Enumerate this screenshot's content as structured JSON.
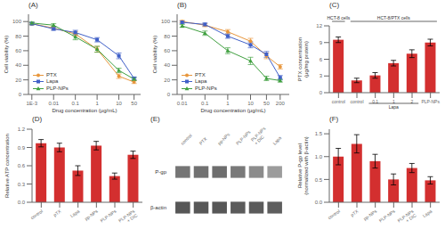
{
  "chart_data": [
    {
      "type": "line",
      "title": "(A)",
      "x_label": "Drug concentration (μg/mL)",
      "y_label": "Cell viability (%)",
      "log": "x",
      "x": [
        0.001,
        0.01,
        0.1,
        1,
        10,
        50
      ],
      "xlim": [
        0.0007,
        100
      ],
      "xticks": [
        {
          "value": 0.001,
          "label": "1E-3"
        },
        0.01,
        0.1,
        1,
        10,
        50
      ],
      "ylim": [
        0,
        110
      ],
      "yticks": [
        0,
        20,
        40,
        60,
        80,
        100
      ],
      "legend": "lower left",
      "series": [
        {
          "name": "PTX",
          "color": "#e8963c",
          "marker": "circle",
          "values": [
            97,
            91,
            83,
            62,
            25,
            17
          ],
          "errors": [
            1.5,
            2,
            3,
            4,
            3,
            2
          ]
        },
        {
          "name": "Lapa",
          "color": "#4060c8",
          "marker": "square",
          "values": [
            97,
            90,
            85,
            75,
            53,
            22
          ],
          "errors": [
            1.5,
            2,
            3,
            3,
            4,
            2
          ]
        },
        {
          "name": "PLP-NPs",
          "color": "#40a040",
          "marker": "triangle",
          "values": [
            98,
            95,
            79,
            62,
            33,
            21
          ],
          "errors": [
            1.5,
            2,
            4,
            4,
            3,
            2
          ]
        }
      ]
    },
    {
      "type": "line",
      "title": "(B)",
      "x_label": "Drug concentration (μg/mL)",
      "y_label": "Cell viability (%)",
      "log": "x",
      "x": [
        0.01,
        0.1,
        1,
        10,
        50,
        200
      ],
      "xlim": [
        0.006,
        500
      ],
      "xticks": [
        0.01,
        0.1,
        1,
        10,
        50,
        200
      ],
      "ylim": [
        0,
        110
      ],
      "yticks": [
        0,
        20,
        40,
        60,
        80,
        100
      ],
      "legend": "lower left",
      "series": [
        {
          "name": "PTX",
          "color": "#e8963c",
          "marker": "circle",
          "values": [
            100,
            95,
            86,
            73,
            53,
            38
          ],
          "errors": [
            1.5,
            2,
            3,
            4,
            4,
            3
          ]
        },
        {
          "name": "Lapa",
          "color": "#4060c8",
          "marker": "square",
          "values": [
            99,
            96,
            80,
            68,
            55,
            23
          ],
          "errors": [
            1.5,
            2,
            3,
            4,
            4,
            3
          ]
        },
        {
          "name": "PLP-NPs",
          "color": "#40a040",
          "marker": "triangle",
          "values": [
            94,
            84,
            60,
            46,
            22,
            19
          ],
          "errors": [
            2,
            3,
            4,
            5,
            3,
            2
          ]
        }
      ]
    },
    {
      "type": "bar",
      "title": "(C)",
      "y_label": "PTX concentration\n(μg/mg protein)",
      "categories": [
        "control",
        "control",
        "0.1",
        "1",
        "2",
        "PLP-NPs"
      ],
      "values": [
        9.5,
        2.2,
        3.1,
        5.3,
        7.0,
        9.0
      ],
      "errors": [
        0.5,
        0.4,
        0.5,
        0.5,
        0.7,
        0.6
      ],
      "color": "#d32f2f",
      "ylim": [
        0,
        12
      ],
      "yticks": [
        0,
        3,
        6,
        9,
        12
      ],
      "annotations": [
        {
          "text": "HCT-8 cells",
          "categories": [
            0,
            0
          ],
          "side": "top"
        },
        {
          "text": "HCT-8/PTX cells",
          "categories": [
            1,
            5
          ],
          "side": "top"
        },
        {
          "text": "Lapa",
          "categories": [
            2,
            4
          ],
          "side": "bottom"
        }
      ]
    },
    {
      "type": "bar",
      "title": "(D)",
      "y_label": "Relative ATP concentration",
      "categories": [
        "control",
        "pTX",
        "Lapa",
        "pp-NPs",
        "PLP-NPs",
        "PLP-NPs\n+ DIC"
      ],
      "values": [
        0.97,
        0.9,
        0.52,
        0.93,
        0.43,
        0.78
      ],
      "errors": [
        0.06,
        0.07,
        0.08,
        0.07,
        0.05,
        0.06
      ],
      "color": "#d32f2f",
      "ylim": [
        0,
        1.2
      ],
      "yticks": [
        {
          "value": 0,
          "label": "0.0"
        },
        0.3,
        0.6,
        0.9,
        1.2
      ]
    },
    {
      "type": "heatmap",
      "title": "(E)",
      "categories": [
        "control",
        "PTX",
        "pp-NPs",
        "PLP-NPs",
        "PLP-NPs\n+ DIC",
        "Lapa"
      ],
      "rows": [
        "P-gp",
        "β-actin"
      ],
      "cells": [
        [
          0.72,
          0.74,
          0.76,
          0.7,
          0.6,
          0.52
        ],
        [
          0.88,
          0.88,
          0.88,
          0.86,
          0.86,
          0.84
        ]
      ]
    },
    {
      "type": "bar",
      "title": "(F)",
      "y_label": "Relative P-gp level\n(normalized with β-actin)",
      "categories": [
        "control",
        "pTX",
        "pp-NPs",
        "PLP-NPs",
        "PLP-NPs\n+ DIC",
        "Lapa"
      ],
      "values": [
        1.0,
        1.28,
        0.9,
        0.5,
        0.75,
        0.48
      ],
      "errors": [
        0.18,
        0.2,
        0.15,
        0.12,
        0.1,
        0.08
      ],
      "color": "#d32f2f",
      "ylim": [
        0,
        1.6
      ],
      "yticks": [
        {
          "value": 0,
          "label": "0.0"
        },
        0.5,
        {
          "value": 1,
          "label": "1.0"
        },
        1.5
      ]
    }
  ]
}
